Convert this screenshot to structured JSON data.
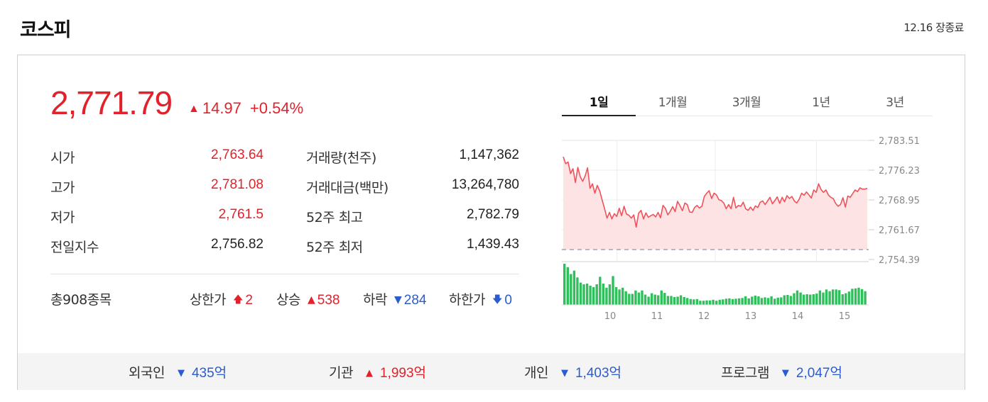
{
  "header": {
    "title": "코스피",
    "status": "12.16 장종료"
  },
  "index": {
    "price": "2,771.79",
    "change_arrow": "▲",
    "change": "14.97",
    "change_pct": "+0.54%"
  },
  "stats_left": [
    {
      "label": "시가",
      "value": "2,763.64",
      "color": "red"
    },
    {
      "label": "고가",
      "value": "2,781.08",
      "color": "red"
    },
    {
      "label": "저가",
      "value": "2,761.5",
      "color": "red"
    },
    {
      "label": "전일지수",
      "value": "2,756.82",
      "color": "dark"
    }
  ],
  "stats_right": [
    {
      "label": "거래량(천주)",
      "value": "1,147,362"
    },
    {
      "label": "거래대금(백만)",
      "value": "13,264,780"
    },
    {
      "label": "52주 최고",
      "value": "2,782.79"
    },
    {
      "label": "52주 최저",
      "value": "1,439.43"
    }
  ],
  "breadth": {
    "total": "총908종목",
    "upper_limit": {
      "label": "상한가",
      "icon": "arrow-up-bold-icon",
      "value": "2"
    },
    "rise": {
      "label": "상승",
      "icon": "triangle-up-icon",
      "value": "538"
    },
    "fall": {
      "label": "하락",
      "icon": "triangle-down-icon",
      "value": "284"
    },
    "lower_limit": {
      "label": "하한가",
      "icon": "arrow-down-bold-icon",
      "value": "0"
    }
  },
  "tabs": [
    {
      "label": "1일",
      "active": true
    },
    {
      "label": "1개월",
      "active": false
    },
    {
      "label": "3개월",
      "active": false
    },
    {
      "label": "1년",
      "active": false
    },
    {
      "label": "3년",
      "active": false
    }
  ],
  "investor_flow": [
    {
      "label": "외국인",
      "arrow": "▼",
      "value": "435억",
      "color": "blue"
    },
    {
      "label": "기관",
      "arrow": "▲",
      "value": "1,993억",
      "color": "red"
    },
    {
      "label": "개인",
      "arrow": "▼",
      "value": "1,403억",
      "color": "blue"
    },
    {
      "label": "프로그램",
      "arrow": "▼",
      "value": "2,047억",
      "color": "blue"
    }
  ],
  "colors": {
    "up": "#e2212b",
    "down": "#2a5ccf",
    "line": "#f0525a",
    "area": "#fde3e4",
    "volume": "#2fbf5b"
  },
  "chart_data": {
    "type": "line",
    "y_ticks": [
      "2,783.51",
      "2,776.23",
      "2,768.95",
      "2,761.67",
      "2,754.39"
    ],
    "ylim": [
      2754.39,
      2783.51
    ],
    "prev_close": 2756.82,
    "x_ticks": [
      "10",
      "11",
      "12",
      "13",
      "14",
      "15"
    ],
    "price": [
      2779.5,
      2777.8,
      2778.2,
      2775.4,
      2776.6,
      2773.2,
      2776.9,
      2774.6,
      2773.5,
      2774.8,
      2776.8,
      2771.8,
      2772.9,
      2770.6,
      2772.5,
      2771.1,
      2768.9,
      2766.8,
      2764.5,
      2765.9,
      2764.3,
      2765.6,
      2764.9,
      2766.9,
      2765.1,
      2767.4,
      2765.5,
      2765.2,
      2764.5,
      2765.3,
      2762.3,
      2765.7,
      2766.4,
      2764.3,
      2765.8,
      2764.7,
      2765.1,
      2765.4,
      2764.8,
      2765.9,
      2764.6,
      2767.6,
      2766.9,
      2765.3,
      2766.2,
      2767.3,
      2766.1,
      2768.6,
      2767.5,
      2766.3,
      2768.2,
      2767.8,
      2766.0,
      2765.9,
      2767.1,
      2767.6,
      2767.0,
      2767.4,
      2769.8,
      2770.6,
      2771.2,
      2769.3,
      2770.6,
      2770.2,
      2769.0,
      2768.8,
      2768.2,
      2766.8,
      2767.8,
      2766.8,
      2769.6,
      2767.0,
      2767.6,
      2767.4,
      2768.4,
      2766.8,
      2766.4,
      2767.2,
      2766.4,
      2767.5,
      2767.1,
      2768.4,
      2768.7,
      2767.8,
      2768.7,
      2769.6,
      2768.0,
      2768.8,
      2769.7,
      2768.1,
      2769.6,
      2768.5,
      2770.0,
      2769.3,
      2769.8,
      2768.7,
      2768.2,
      2769.1,
      2770.6,
      2770.1,
      2770.9,
      2770.2,
      2769.4,
      2771.4,
      2770.8,
      2772.9,
      2771.5,
      2770.8,
      2771.4,
      2770.2,
      2769.6,
      2769.3,
      2768.1,
      2767.4,
      2767.8,
      2769.5,
      2767.2,
      2769.9,
      2769.6,
      2770.5,
      2771.4,
      2771.0,
      2771.9,
      2771.6,
      2771.6,
      2771.8
    ],
    "volume": [
      12,
      11,
      9,
      10,
      8,
      6.5,
      6,
      6.2,
      5.6,
      5.2,
      6,
      8.2,
      6.2,
      5,
      6,
      8.4,
      5.2,
      4.5,
      5,
      4,
      3.2,
      3.2,
      4.2,
      3.6,
      4.2,
      3,
      2.4,
      3.4,
      3,
      2.8,
      4.2,
      3.5,
      2.6,
      2.6,
      2.3,
      2.4,
      2.8,
      2.3,
      2,
      1.7,
      1.6,
      1.7,
      1.2,
      1.2,
      1.3,
      1.3,
      1.5,
      1.2,
      1.5,
      1.6,
      1.8,
      1.9,
      1.7,
      1.8,
      1.9,
      2.0,
      2.5,
      1.9,
      2.4,
      2.7,
      2.5,
      2.0,
      2.2,
      2.0,
      2.5,
      1.8,
      2.1,
      2.2,
      2.8,
      2.9,
      2.6,
      3.4,
      4.2,
      3.6,
      3.0,
      3.1,
      3.0,
      3.1,
      3.3,
      4.2,
      3.6,
      4.5,
      4.0,
      4.5,
      4.5,
      4.3,
      3.1,
      3.4,
      3.9,
      4.7,
      4.8,
      5.0,
      4.6,
      4.0
    ]
  }
}
